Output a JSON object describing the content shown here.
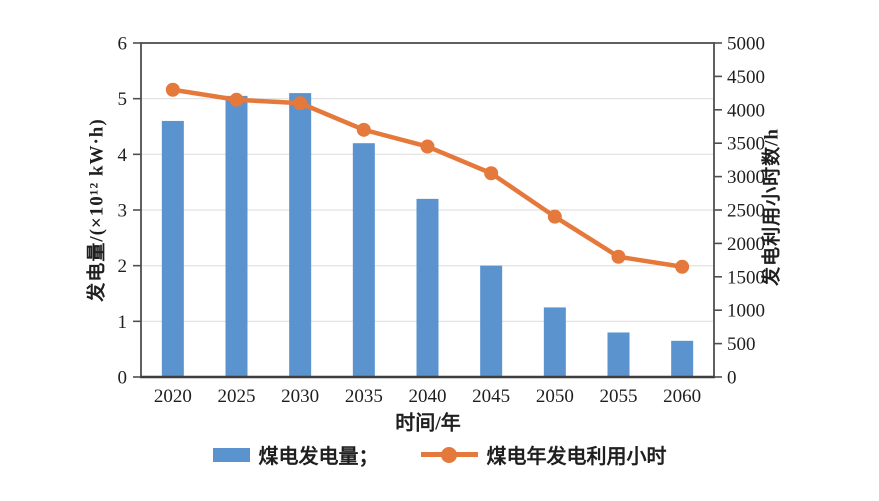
{
  "figure": {
    "x_title": "时间/年",
    "left_axis_label": "发电量/(×10¹² kW·h)",
    "right_axis_label": "发电利用小时数/h",
    "legend": {
      "bar_label": "煤电发电量；",
      "line_label": "煤电年发电利用小时"
    }
  },
  "chart_data": {
    "type": "combo-bar-line",
    "categories": [
      "2020",
      "2025",
      "2030",
      "2035",
      "2040",
      "2045",
      "2050",
      "2055",
      "2060"
    ],
    "series": [
      {
        "name": "煤电发电量",
        "type": "bar",
        "axis": "left",
        "color": "#5b93ce",
        "values": [
          4.6,
          5.05,
          5.1,
          4.2,
          3.2,
          2.0,
          1.25,
          0.8,
          0.65
        ]
      },
      {
        "name": "煤电年发电利用小时",
        "type": "line",
        "axis": "right",
        "color": "#e5793c",
        "values": [
          4300,
          4150,
          4100,
          3700,
          3450,
          3050,
          2400,
          1800,
          1650
        ]
      }
    ],
    "title": "",
    "xlabel": "时间/年",
    "left_axis": {
      "label": "发电量/(×10¹² kW·h)",
      "min": 0,
      "max": 6,
      "ticks": [
        "0",
        "1",
        "2",
        "3",
        "4",
        "5",
        "6"
      ]
    },
    "right_axis": {
      "label": "发电利用小时数/h",
      "min": 0,
      "max": 5000,
      "ticks": [
        "0",
        "500",
        "1000",
        "1500",
        "2000",
        "2500",
        "3000",
        "3500",
        "4000",
        "4500",
        "5000"
      ]
    },
    "grid": true,
    "legend_position": "bottom"
  },
  "style": {
    "grid_color": "#e0e0e0",
    "spine_color": "#4f4f4f",
    "tick_text_color": "#1f1f1f",
    "bar_color": "#5b93ce",
    "line_color": "#e5793c"
  }
}
